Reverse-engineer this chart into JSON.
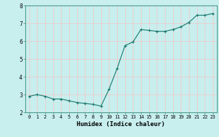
{
  "x": [
    0,
    1,
    2,
    3,
    4,
    5,
    6,
    7,
    8,
    9,
    10,
    11,
    12,
    13,
    14,
    15,
    16,
    17,
    18,
    19,
    20,
    21,
    22,
    23
  ],
  "y": [
    2.9,
    3.0,
    2.9,
    2.75,
    2.75,
    2.65,
    2.55,
    2.5,
    2.45,
    2.35,
    3.3,
    4.45,
    5.75,
    5.95,
    6.65,
    6.6,
    6.55,
    6.55,
    6.65,
    6.8,
    7.05,
    7.45,
    7.45,
    7.55
  ],
  "xlabel": "Humidex (Indice chaleur)",
  "ylim": [
    2,
    8
  ],
  "xlim": [
    -0.5,
    23.5
  ],
  "yticks": [
    2,
    3,
    4,
    5,
    6,
    7,
    8
  ],
  "xticks": [
    0,
    1,
    2,
    3,
    4,
    5,
    6,
    7,
    8,
    9,
    10,
    11,
    12,
    13,
    14,
    15,
    16,
    17,
    18,
    19,
    20,
    21,
    22,
    23
  ],
  "xtick_labels": [
    "0",
    "1",
    "2",
    "3",
    "4",
    "5",
    "6",
    "7",
    "8",
    "9",
    "10",
    "11",
    "12",
    "13",
    "14",
    "15",
    "16",
    "17",
    "18",
    "19",
    "20",
    "21",
    "22",
    "23"
  ],
  "line_color": "#1a7a6e",
  "marker": "+",
  "bg_color": "#c8eeee",
  "grid_color": "#f0c8c8",
  "spine_color": "#4a9a8a",
  "xlabel_color": "#000000",
  "tick_label_color": "#000000"
}
